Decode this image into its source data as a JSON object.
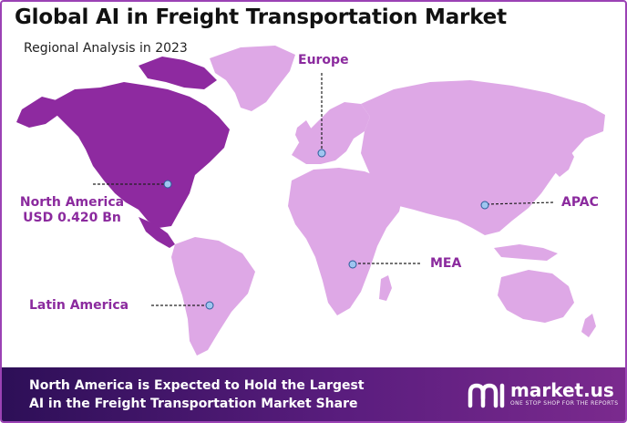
{
  "header": {
    "title": "Global AI in Freight Transportation Market",
    "subtitle": "Regional Analysis in 2023"
  },
  "map": {
    "highlight_region": "North America",
    "colors": {
      "highlight": "#8e2aa0",
      "land": "#dea8e6",
      "marker": "#9fc5f0",
      "leader_line": "#222222",
      "label": "#8b2a9e"
    },
    "regions": [
      {
        "id": "europe",
        "name": "Europe"
      },
      {
        "id": "north-america",
        "name": "North America",
        "value": "USD 0.420 Bn"
      },
      {
        "id": "apac",
        "name": "APAC"
      },
      {
        "id": "mea",
        "name": "MEA"
      },
      {
        "id": "latin-america",
        "name": "Latin America"
      }
    ]
  },
  "banner": {
    "line1": "North America is Expected to Hold the Largest",
    "line2": "AI in the Freight Transportation Market Share",
    "colors": {
      "start": "#2d0f57",
      "end": "#7b2a8e"
    }
  },
  "logo": {
    "name": "market.us",
    "tagline": "ONE STOP SHOP FOR THE REPORTS",
    "icon": "market-us-logo-icon"
  }
}
